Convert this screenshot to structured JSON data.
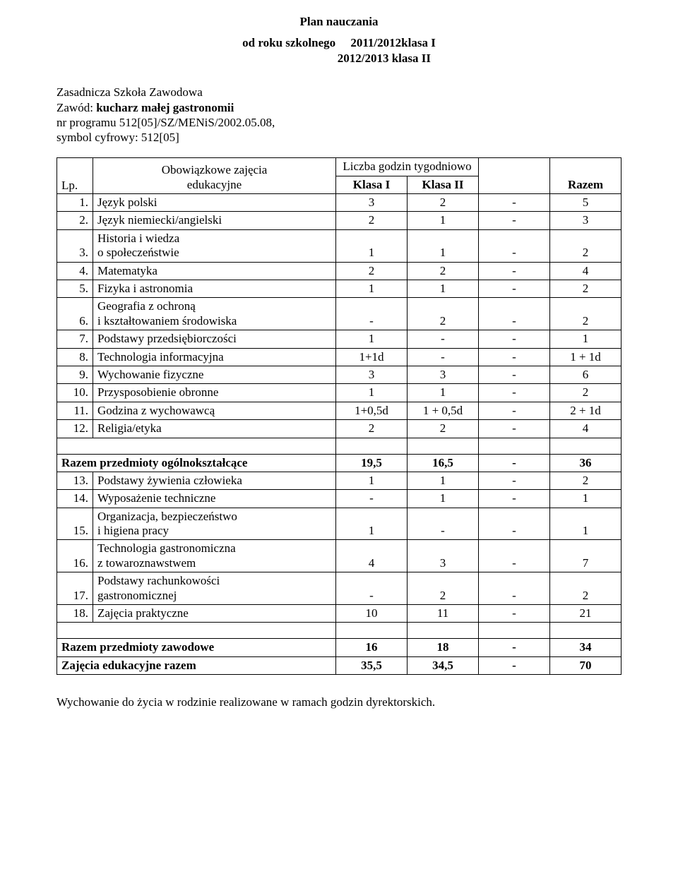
{
  "title": "Plan nauczania",
  "subtitle_line1_label": "od roku szkolnego",
  "subtitle_line1_value": "2011/2012klasa I",
  "subtitle_line2": "2012/2013 klasa II",
  "meta_line1": "Zasadnicza Szkoła Zawodowa",
  "meta_line2_label": "Zawód:",
  "meta_line2_value": "kucharz małej gastronomii",
  "meta_line3": "nr programu 512[05]/SZ/MENiS/2002.05.08,",
  "meta_line4": "symbol cyfrowy: 512[05]",
  "hdr_lp": "Lp.",
  "hdr_ob_line1": "Obowiązkowe zajęcia",
  "hdr_ob_line2": "edukacyjne",
  "hdr_liczba": "Liczba godzin tygodniowo",
  "hdr_k1": "Klasa I",
  "hdr_k2": "Klasa II",
  "hdr_razem": "Razem",
  "rows_general": [
    {
      "lp": "1.",
      "name": "Język polski",
      "k1": "3",
      "k2": "2",
      "d": "-",
      "r": "5"
    },
    {
      "lp": "2.",
      "name": "Język niemiecki/angielski",
      "k1": "2",
      "k2": "1",
      "d": "-",
      "r": "3"
    },
    {
      "lp": "3.",
      "name_line1": "Historia i wiedza",
      "name_line2": "o społeczeństwie",
      "k1": "1",
      "k2": "1",
      "d": "-",
      "r": "2"
    },
    {
      "lp": "4.",
      "name": "Matematyka",
      "k1": "2",
      "k2": "2",
      "d": "-",
      "r": "4"
    },
    {
      "lp": "5.",
      "name": "Fizyka i astronomia",
      "k1": "1",
      "k2": "1",
      "d": "-",
      "r": "2"
    },
    {
      "lp": "6.",
      "name_line1": "Geografia z ochroną",
      "name_line2": "i kształtowaniem środowiska",
      "k1": "-",
      "k2": "2",
      "d": "-",
      "r": "2"
    },
    {
      "lp": "7.",
      "name": "Podstawy przedsiębiorczości",
      "k1": "1",
      "k2": "-",
      "d": "-",
      "r": "1"
    },
    {
      "lp": "8.",
      "name": "Technologia informacyjna",
      "k1": "1+1d",
      "k2": "-",
      "d": "-",
      "r": "1 + 1d"
    },
    {
      "lp": "9.",
      "name": "Wychowanie fizyczne",
      "k1": "3",
      "k2": "3",
      "d": "-",
      "r": "6"
    },
    {
      "lp": "10.",
      "name": "Przysposobienie obronne",
      "k1": "1",
      "k2": "1",
      "d": "-",
      "r": "2"
    },
    {
      "lp": "11.",
      "name": "Godzina z wychowawcą",
      "k1": "1+0,5d",
      "k2": "1 + 0,5d",
      "d": "-",
      "r": "2 + 1d"
    },
    {
      "lp": "12.",
      "name": "Religia/etyka",
      "k1": "2",
      "k2": "2",
      "d": "-",
      "r": "4"
    }
  ],
  "summary_general": {
    "label": "Razem przedmioty ogólnokształcące",
    "k1": "19,5",
    "k2": "16,5",
    "d": "-",
    "r": "36"
  },
  "rows_vocational": [
    {
      "lp": "13.",
      "name": "Podstawy żywienia człowieka",
      "k1": "1",
      "k2": "1",
      "d": "-",
      "r": "2"
    },
    {
      "lp": "14.",
      "name": "Wyposażenie techniczne",
      "k1": "-",
      "k2": "1",
      "d": "-",
      "r": "1"
    },
    {
      "lp": "15.",
      "name_line1": "Organizacja, bezpieczeństwo",
      "name_line2": "i higiena pracy",
      "k1": "1",
      "k2": "-",
      "d": "-",
      "r": "1"
    },
    {
      "lp": "16.",
      "name_line1": "Technologia gastronomiczna",
      "name_line2": "z towaroznawstwem",
      "k1": "4",
      "k2": "3",
      "d": "-",
      "r": "7"
    },
    {
      "lp": "17.",
      "name_line1": "Podstawy rachunkowości",
      "name_line2": "gastronomicznej",
      "k1": "-",
      "k2": "2",
      "d": "-",
      "r": "2"
    },
    {
      "lp": "18.",
      "name": "Zajęcia praktyczne",
      "k1": "10",
      "k2": "11",
      "d": "-",
      "r": "21"
    }
  ],
  "summary_vocational": {
    "label": "Razem przedmioty zawodowe",
    "k1": "16",
    "k2": "18",
    "d": "-",
    "r": "34"
  },
  "summary_total": {
    "label": "Zajęcia edukacyjne razem",
    "k1": "35,5",
    "k2": "34,5",
    "d": "-",
    "r": "70"
  },
  "footnote": "Wychowanie do życia w rodzinie realizowane w ramach godzin dyrektorskich."
}
